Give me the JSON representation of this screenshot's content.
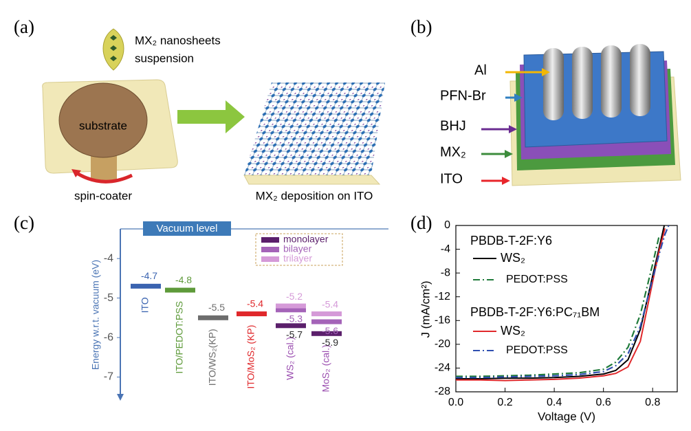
{
  "panel_a": {
    "label": "(a)",
    "suspension": [
      "MX₂ nanosheets",
      "suspension"
    ],
    "substrate": "substrate",
    "spin_coater": "spin-coater",
    "deposition": "MX₂ deposition on ITO"
  },
  "panel_b": {
    "label": "(b)",
    "layers": [
      {
        "label": "Al",
        "color": "#f2b705"
      },
      {
        "label": "PFN-Br",
        "color": "#2f7fc1"
      },
      {
        "label": "BHJ",
        "color": "#6a2c91"
      },
      {
        "label": "MX₂",
        "color": "#3c8c3c"
      },
      {
        "label": "ITO",
        "color": "#e8262b"
      }
    ]
  },
  "chart_data": [
    {
      "type": "energy-level",
      "label": "(c)",
      "annotation": "Vacuum level",
      "ylabel": "Energy w.r.t. vacuum (eV)",
      "ylim": [
        -7.6,
        -3.25
      ],
      "yticks": [
        -4,
        -5,
        -6,
        -7
      ],
      "categories": [
        "ITO",
        "ITO/PEDOT:PSS",
        "ITO/WS₂(KP)",
        "ITO/MoS₂ (KP)",
        "WS₂ (cal.)",
        "MoS₂ (cal.)"
      ],
      "values": [
        -4.7,
        -4.8,
        -5.5,
        -5.4,
        null,
        null
      ],
      "colors": [
        "#3a63b0",
        "#5e9a3a",
        "#6d6d6d",
        "#e0282b",
        "#9b4fb0",
        "#9b4fb0"
      ],
      "series": [
        {
          "name": "monolayer",
          "color": "#5b1f6b",
          "values": [
            null,
            null,
            null,
            null,
            -5.7,
            -5.9
          ]
        },
        {
          "name": "bilayer",
          "color": "#a463b8",
          "values": [
            null,
            null,
            null,
            null,
            -5.3,
            -5.6
          ]
        },
        {
          "name": "trilayer",
          "color": "#d59ad8",
          "values": [
            null,
            null,
            null,
            null,
            -5.2,
            -5.4
          ]
        }
      ]
    },
    {
      "type": "line",
      "label": "(d)",
      "xlabel": "Voltage (V)",
      "ylabel": "J (mA/cm²)",
      "xlim": [
        0,
        0.9
      ],
      "ylim": [
        -28,
        0
      ],
      "xticks": [
        {
          "value": 0,
          "label": "0.0"
        },
        0.2,
        0.4,
        0.6,
        0.8
      ],
      "yticks": [
        0,
        -4,
        -8,
        -12,
        -16,
        -20,
        -24,
        -28
      ],
      "legend_titles": [
        "PBDB-T-2F:Y6",
        "PBDB-T-2F:Y6:PC₇₁BM"
      ],
      "x": [
        0,
        0.1,
        0.2,
        0.3,
        0.4,
        0.5,
        0.6,
        0.65,
        0.7,
        0.75,
        0.8,
        0.825,
        0.85,
        0.87
      ],
      "series": [
        {
          "name": "WS₂",
          "color": "#000000",
          "style": "solid",
          "values": [
            -25.8,
            -25.8,
            -25.7,
            -25.7,
            -25.6,
            -25.4,
            -25.0,
            -24.4,
            -22.6,
            -17.5,
            -8.5,
            -4,
            0.5,
            null
          ]
        },
        {
          "name": "PEDOT:PSS",
          "color": "#1f7a3a",
          "style": "dashdot",
          "values": [
            -25.4,
            -25.4,
            -25.3,
            -25.2,
            -25.0,
            -24.8,
            -24.2,
            -23.0,
            -20.5,
            -15.0,
            -6.5,
            -2,
            null,
            null
          ]
        },
        {
          "name": "WS₂",
          "color": "#e0282b",
          "style": "solid",
          "values": [
            -26.0,
            -26.0,
            -26.1,
            -26.0,
            -25.9,
            -25.7,
            -25.3,
            -24.9,
            -23.8,
            -19.5,
            -9.5,
            -4.5,
            -0.5,
            null
          ]
        },
        {
          "name": "PEDOT:PSS",
          "color": "#2f4fb0",
          "style": "dashdot",
          "values": [
            -25.6,
            -25.6,
            -25.5,
            -25.4,
            -25.3,
            -25.1,
            -24.6,
            -23.6,
            -21.6,
            -17.0,
            -9.0,
            -5,
            -1.5,
            0.5
          ]
        }
      ]
    }
  ]
}
